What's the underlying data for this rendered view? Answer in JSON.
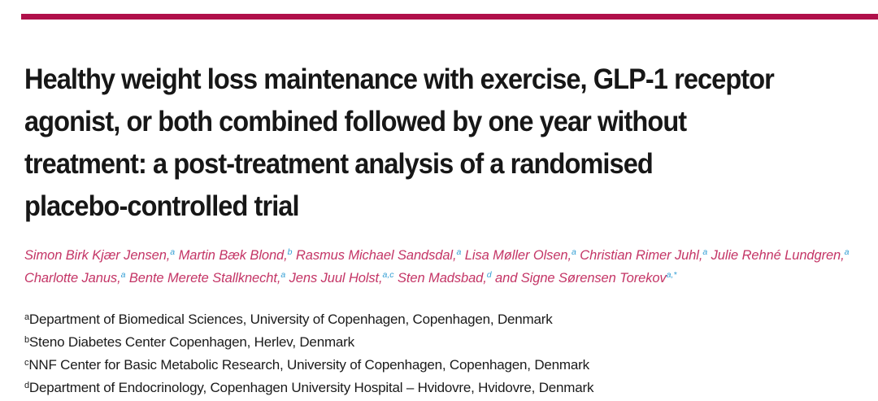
{
  "page": {
    "background": "#ffffff",
    "rule_color": "#b0104a"
  },
  "title": {
    "color": "#171717",
    "lines": [
      "Healthy weight loss maintenance with exercise, GLP-1 receptor",
      "agonist, or both combined followed by one year without",
      "treatment: a post-treatment analysis of a randomised",
      "placebo-controlled trial"
    ]
  },
  "authors": {
    "name_color": "#c43566",
    "superscript_color": "#36a0d5",
    "line1": [
      {
        "name": "Simon Birk Kjær Jensen,",
        "sup": "a"
      },
      {
        "name": " Martin Bæk Blond,",
        "sup": "b"
      },
      {
        "name": " Rasmus Michael Sandsdal,",
        "sup": "a"
      },
      {
        "name": " Lisa Møller Olsen,",
        "sup": "a"
      },
      {
        "name": " Christian Rimer Juhl,",
        "sup": "a"
      },
      {
        "name": " Julie Rehné Lundgren,",
        "sup": "a"
      }
    ],
    "line2": [
      {
        "name": "Charlotte Janus,",
        "sup": "a"
      },
      {
        "name": " Bente Merete Stallknecht,",
        "sup": "a"
      },
      {
        "name": " Jens Juul Holst,",
        "sup": "a,c"
      },
      {
        "name": " Sten Madsbad,",
        "sup": "d"
      },
      {
        "name": " and Signe Sørensen Torekov",
        "sup": "a,*"
      }
    ]
  },
  "affiliations": {
    "text_color": "#1a1a1a",
    "items": [
      {
        "sup": "a",
        "text": "Department of Biomedical Sciences, University of Copenhagen, Copenhagen, Denmark"
      },
      {
        "sup": "b",
        "text": "Steno Diabetes Center Copenhagen, Herlev, Denmark"
      },
      {
        "sup": "c",
        "text": "NNF Center for Basic Metabolic Research, University of Copenhagen, Copenhagen, Denmark"
      },
      {
        "sup": "d",
        "text": "Department of Endocrinology, Copenhagen University Hospital – Hvidovre, Hvidovre, Denmark"
      }
    ]
  }
}
